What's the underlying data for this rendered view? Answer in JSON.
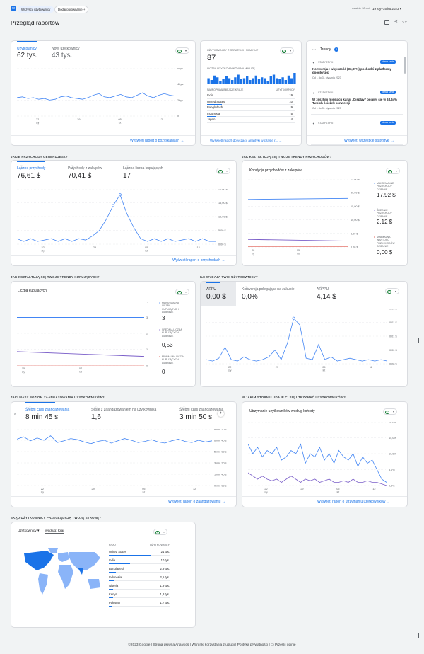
{
  "header": {
    "avatar": "W",
    "comparison_chip": "Wszyscy użytkownicy",
    "add_comparison": "Dodaj porównanie",
    "date_prefix": "ostatnie 30 dni",
    "date_range": "19 sty–15 lut 2023"
  },
  "page_title": "Przegląd raportów",
  "users_card": {
    "m1_label": "Użytkownicy",
    "m1_value": "62 tys.",
    "m2_label": "Nowi użytkownicy",
    "m2_value": "43 tys.",
    "yticks": [
      "6 tys.",
      "4 tys.",
      "2 tys.",
      "0"
    ],
    "xticks": [
      "22",
      "29",
      "05",
      "12"
    ],
    "xsub": [
      "sty",
      "",
      "lut",
      ""
    ],
    "link": "Wyświetl raport o pozyskaniach"
  },
  "realtime": {
    "label": "UŻYTKOWNICY Z OSTATNICH 30 MINUT",
    "value": "87",
    "sub": "LICZBA UŻYTKOWNIKÓW NA MINUTĘ",
    "bars": [
      6,
      4,
      9,
      7,
      3,
      5,
      8,
      6,
      4,
      7,
      10,
      5,
      6,
      8,
      4,
      6,
      9,
      5,
      7,
      6,
      3,
      8,
      10,
      6,
      5,
      7,
      4,
      9,
      6,
      12
    ],
    "col1": "NAJPOPULARNIEJSZE KRAJE",
    "col2": "UŻYTKOWNICY",
    "rows": [
      {
        "k": "India",
        "v": "19"
      },
      {
        "k": "United States",
        "v": "10"
      },
      {
        "k": "Bangladesh",
        "v": "9"
      },
      {
        "k": "Indonesia",
        "v": "5"
      },
      {
        "k": "Japan",
        "v": "4"
      }
    ],
    "link": "Wyświetl raport dotyczący analityki w czasie r..."
  },
  "trends": {
    "title": "Trendy",
    "badge": "3",
    "items": [
      {
        "tag": "STATYSTYKI",
        "new": "Nowa karta",
        "text": "Konwersja : większość (33,87%) pochodzi z platformy google/cpc",
        "date": "Od 1 do 31 stycznia 2023"
      },
      {
        "tag": "STATYSTYKI",
        "new": "Nowa karta",
        "text": "W zeszłym miesiącu kanał „Display” pojawił się w 63,64% Twoich ścieżek konwersji",
        "date": "Od 1 do 31 stycznia 2023"
      },
      {
        "tag": "STATYSTYKI",
        "new": "Nowa karta",
        "text": "",
        "date": ""
      }
    ],
    "link": "Wyświetl wszystkie statystyki"
  },
  "rev": {
    "section": "JAKIE PRZYCHODY GENERUJESZ?",
    "m": [
      {
        "l": "Łączne przychody",
        "v": "76,61 $"
      },
      {
        "l": "Przychody z zakupów",
        "v": "70,41 $"
      },
      {
        "l": "Łączna liczba kupujących",
        "v": "17"
      }
    ],
    "yticks": [
      "20,00 $",
      "15,00 $",
      "10,00 $",
      "5,00 $",
      "0,00 $"
    ],
    "xticks": [
      "22",
      "29",
      "05",
      "12"
    ],
    "xsub": [
      "sty",
      "",
      "lut",
      ""
    ],
    "link": "Wyświetl raport o przychodach"
  },
  "revtrend": {
    "section": "JAK KSZTAŁTUJĄ SIĘ TWOJE TRENDY PRZYCHODÓW?",
    "title": "Kondycja przychodów z zakupów",
    "yticks": [
      "25,00 $",
      "20,00 $",
      "15,00 $",
      "10,00 $",
      "5,00 $",
      "0,00 $"
    ],
    "xticks": [
      "29",
      "05"
    ],
    "xsub": [
      "sty",
      "lut"
    ],
    "s": [
      {
        "l": "MAKSYMALNE PRZYCHODY DZIENNE",
        "v": "17,92 $"
      },
      {
        "l": "ŚREDNIE PRZYCHODY DZIENNE",
        "v": "2,12 $"
      },
      {
        "l": "MINIMALNA WARTOŚĆ PRZYCHODÓW DZIENNIE",
        "v": "0,00 $"
      }
    ]
  },
  "buyers": {
    "section": "JAK KSZTAŁTUJĄ SIĘ TWOJE TRENDY KUPUJĄCYCH?",
    "title": "Liczba kupujących",
    "yticks": [
      "4",
      "3",
      "2",
      "1",
      "0"
    ],
    "xticks": [
      "15",
      "07"
    ],
    "xsub": [
      "sty",
      "lut"
    ],
    "s": [
      {
        "l": "MAKSYMALNA LICZBA KUPUJĄCYCH DZIENNIE",
        "v": "3"
      },
      {
        "l": "ŚREDNIA LICZBA KUPUJĄCYCH DZIENNIE",
        "v": "0,53"
      },
      {
        "l": "MINIMALNA LICZBA KUPUJĄCYCH DZIENNIE",
        "v": "0"
      }
    ]
  },
  "arpu": {
    "section": "ILE WYDAJĄ TWOI UŻYTKOWNICY?",
    "m": [
      {
        "l": "ARPU",
        "v": "0,00 $"
      },
      {
        "l": "Konwersja polegająca na zakupie",
        "v": "0,0%"
      },
      {
        "l": "ARPPU",
        "v": "4,14 $"
      }
    ],
    "yticks": [
      "0,01 $",
      "0,01 $",
      "0,01 $",
      "0,00 $",
      "0,00 $"
    ],
    "xticks": [
      "22",
      "29",
      "05",
      "12"
    ],
    "xsub": [
      "sty",
      "",
      "lut",
      ""
    ]
  },
  "engage": {
    "section": "JAKI MASZ POZIOM ZAANGAŻOWANIA UŻYTKOWNIKÓW?",
    "m": [
      {
        "l": "Średni czas zaangażowania",
        "v": "8 min 45 s"
      },
      {
        "l": "Sesje z zaangażowaniem na użytkownika",
        "v": "1,6"
      },
      {
        "l": "Średni czas zaangażowania",
        "v": "3 min 50 s"
      }
    ],
    "yticks": [
      "8 min 20 s",
      "6 min 40 s",
      "5 min 00 s",
      "3 min 20 s",
      "1 min 40 s",
      "0 min 00 s"
    ],
    "xticks": [
      "22",
      "29",
      "05",
      "12"
    ],
    "xsub": [
      "sty",
      "",
      "lut",
      ""
    ],
    "link": "Wyświetl raport o zaangażowaniu"
  },
  "retention": {
    "section": "W JAKIM STOPNIU UDAJE CI SIĘ UTRZYMAĆ UŻYTKOWNIKÓW?",
    "title": "Utrzymanie użytkowników według kohorty",
    "yticks": [
      "20,0%",
      "15,0%",
      "10,0%",
      "5,0%",
      "0,0%"
    ],
    "xticks": [
      "22",
      "29",
      "05",
      "12"
    ],
    "xsub": [
      "sty",
      "",
      "lut",
      ""
    ],
    "link": "Wyświetl raport o utrzymaniu użytkowników"
  },
  "geo": {
    "section": "SKĄD UŻYTKOWNICY PRZEGLĄDAJĄ TWOJĄ STRONĘ?",
    "select": "Użytkownicy",
    "by": "według: Kraj",
    "col1": "KRAJ",
    "col2": "UŻYTKOWNICY",
    "rows": [
      {
        "k": "United States",
        "v": "21 tys."
      },
      {
        "k": "India",
        "v": "10 tys."
      },
      {
        "k": "Bangladesh",
        "v": "2,9 tys."
      },
      {
        "k": "Indonesia",
        "v": "2,5 tys."
      },
      {
        "k": "Nigeria",
        "v": "1,9 tys."
      },
      {
        "k": "Kenya",
        "v": "1,8 tys."
      },
      {
        "k": "Pakistan",
        "v": "1,7 tys."
      }
    ]
  },
  "footer": {
    "copy": "©2023 Google",
    "l1": "Strona główna Analytics",
    "l2": "Warunki korzystania z usługi",
    "l3": "Polityka prywatności",
    "fb": "Prześlij opinię"
  },
  "colors": {
    "blue": "#4285f4",
    "purple": "#7b5fc9",
    "accent": "#1a73e8"
  }
}
